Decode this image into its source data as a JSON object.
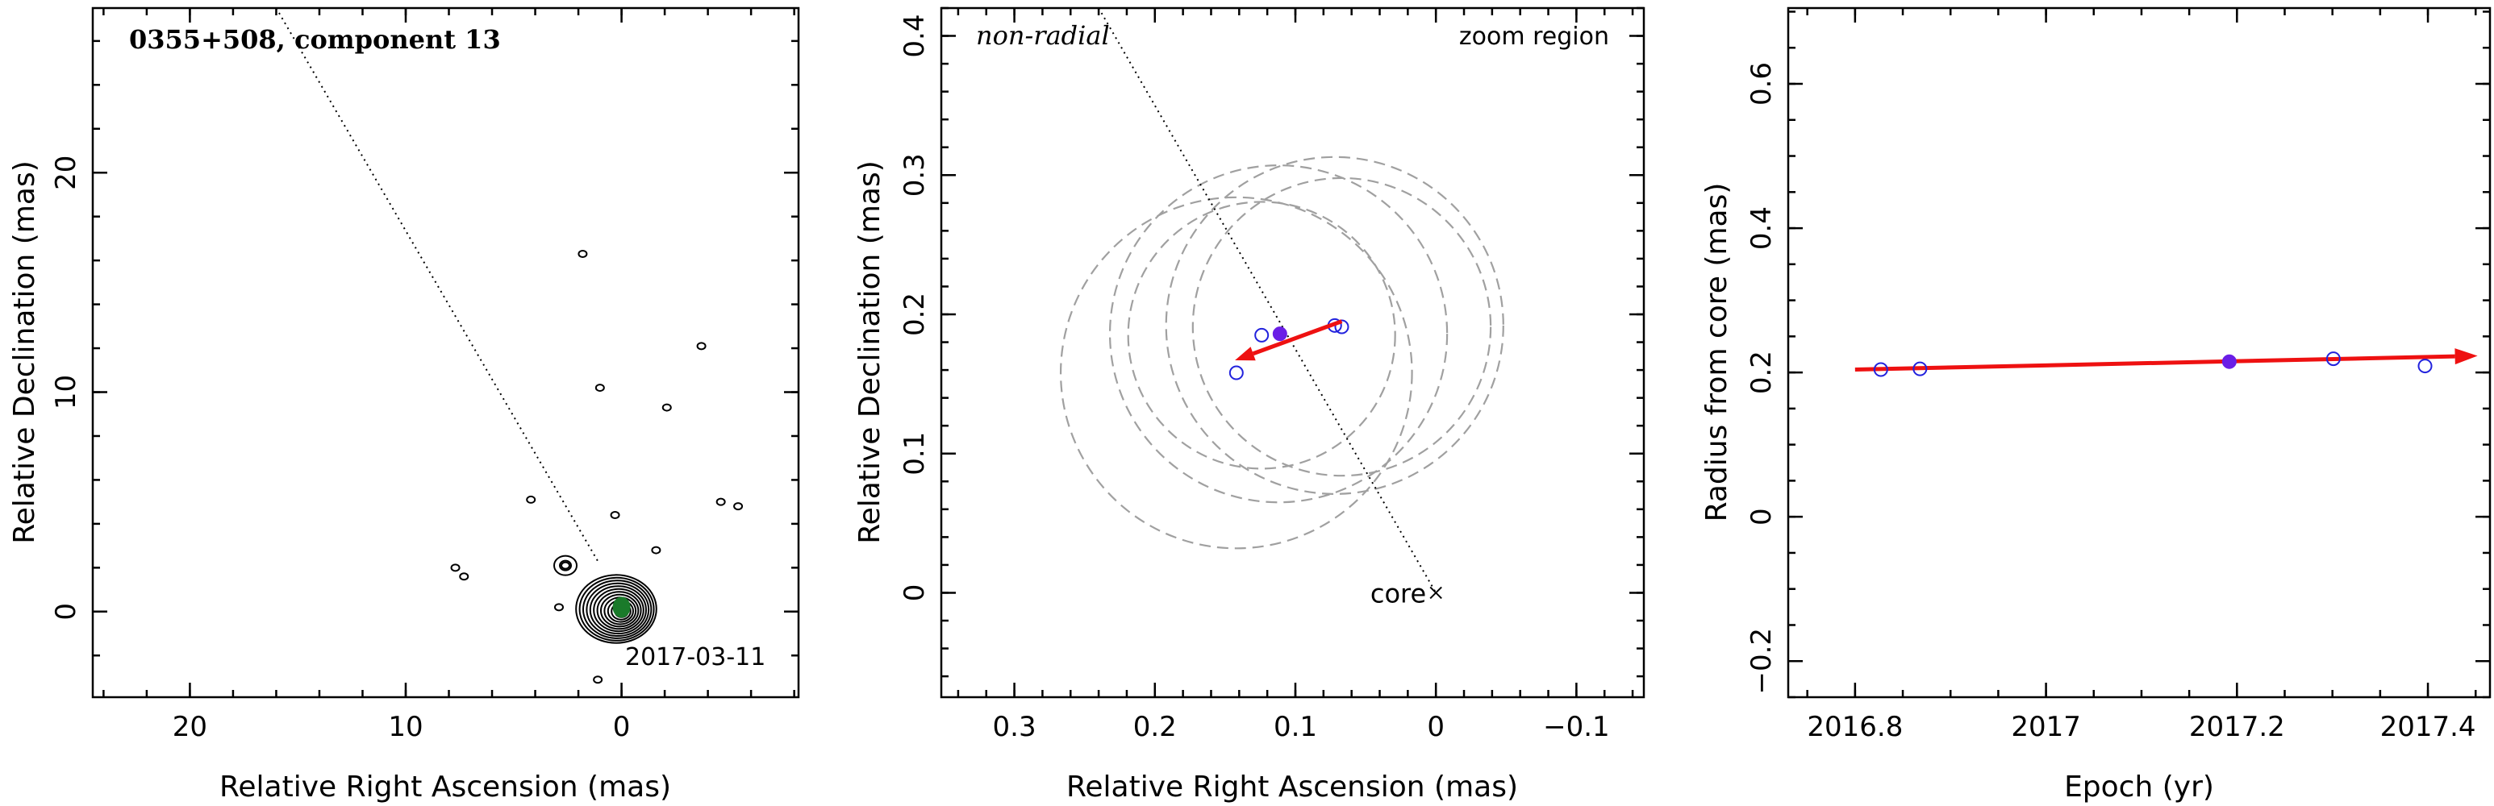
{
  "chart_data": [
    {
      "type": "contour",
      "title": "0355+508, component 13",
      "xlabel": "Relative Right Ascension (mas)",
      "ylabel": "Relative Declination (mas)",
      "xlim": [
        24.5,
        -8.2
      ],
      "ylim": [
        -3.9,
        27.5
      ],
      "x_ticks": [
        20,
        10,
        0
      ],
      "y_ticks": [
        0,
        10,
        20
      ],
      "date_label": "2017-03-11",
      "direction_line": [
        [
          16.0,
          27.5
        ],
        [
          1.1,
          2.3
        ]
      ],
      "core_position": [
        0.0,
        0.0
      ],
      "component_position": [
        0.0,
        0.2
      ],
      "isolated_contours": [
        {
          "x": 1.8,
          "y": 16.3
        },
        {
          "x": -3.7,
          "y": 12.1
        },
        {
          "x": 1.0,
          "y": 10.2
        },
        {
          "x": -2.1,
          "y": 9.3
        },
        {
          "x": 4.2,
          "y": 5.1
        },
        {
          "x": -4.6,
          "y": 5.0
        },
        {
          "x": -5.4,
          "y": 4.8
        },
        {
          "x": 0.3,
          "y": 4.4
        },
        {
          "x": -1.6,
          "y": 2.8
        },
        {
          "x": 7.7,
          "y": 2.0
        },
        {
          "x": 7.3,
          "y": 1.6
        },
        {
          "x": 2.6,
          "y": 2.1
        },
        {
          "x": 2.9,
          "y": 0.2
        },
        {
          "x": 1.1,
          "y": -3.1
        }
      ],
      "colors": {
        "contour": "#000000",
        "component": "#1a7a2a"
      }
    },
    {
      "type": "scatter",
      "annotation": "non-radial",
      "corner_label": "zoom region",
      "xlabel": "Relative Right Ascension (mas)",
      "ylabel": "Relative Declination (mas)",
      "xlim": [
        0.352,
        -0.148
      ],
      "ylim": [
        -0.075,
        0.42
      ],
      "x_ticks": [
        0.3,
        0.2,
        0.1,
        0,
        -0.1
      ],
      "y_ticks": [
        0,
        0.1,
        0.2,
        0.3,
        0.4
      ],
      "core_label": "core",
      "core_position": [
        0,
        0
      ],
      "direction_line": [
        [
          0.24,
          0.42
        ],
        [
          0.0,
          0.0
        ]
      ],
      "open_points": [
        {
          "x": 0.124,
          "y": 0.185
        },
        {
          "x": 0.072,
          "y": 0.192
        },
        {
          "x": 0.067,
          "y": 0.191
        },
        {
          "x": 0.142,
          "y": 0.158
        }
      ],
      "filled_point": {
        "x": 0.111,
        "y": 0.186
      },
      "beam_circles": [
        {
          "x": 0.124,
          "y": 0.185,
          "r": 0.095
        },
        {
          "x": 0.112,
          "y": 0.186,
          "r": 0.12
        },
        {
          "x": 0.072,
          "y": 0.192,
          "r": 0.12
        },
        {
          "x": 0.067,
          "y": 0.191,
          "r": 0.106
        },
        {
          "x": 0.142,
          "y": 0.158,
          "r": 0.125
        }
      ],
      "velocity_arrow": {
        "from": [
          0.067,
          0.195
        ],
        "to": [
          0.143,
          0.167
        ]
      },
      "colors": {
        "points": "#2222dd",
        "filled": "#6a1ee6",
        "arrow": "#ee1111",
        "beams": "#a0a0a0"
      }
    },
    {
      "type": "scatter",
      "xlabel": "Epoch (yr)",
      "ylabel": "Radius from core (mas)",
      "xlim": [
        2016.73,
        2017.465
      ],
      "ylim": [
        -0.25,
        0.705
      ],
      "x_ticks": [
        2016.8,
        2017,
        2017.2,
        2017.4
      ],
      "x_tick_labels": [
        "2016.8",
        "2017",
        "2017.2",
        "2017.4"
      ],
      "y_ticks": [
        -0.2,
        0,
        0.2,
        0.4,
        0.6
      ],
      "y_tick_labels": [
        "−0.2",
        "0",
        "0.2",
        "0.4",
        "0.6"
      ],
      "open_points": [
        {
          "x": 2016.827,
          "y": 0.204
        },
        {
          "x": 2016.868,
          "y": 0.205
        },
        {
          "x": 2017.301,
          "y": 0.219
        },
        {
          "x": 2017.397,
          "y": 0.209
        }
      ],
      "filled_point": {
        "x": 2017.192,
        "y": 0.215
      },
      "fit_line": {
        "from": [
          2016.8,
          0.204
        ],
        "to": [
          2017.452,
          0.223
        ]
      },
      "colors": {
        "points": "#2222dd",
        "filled": "#6a1ee6",
        "fit": "#ee1111"
      }
    }
  ]
}
